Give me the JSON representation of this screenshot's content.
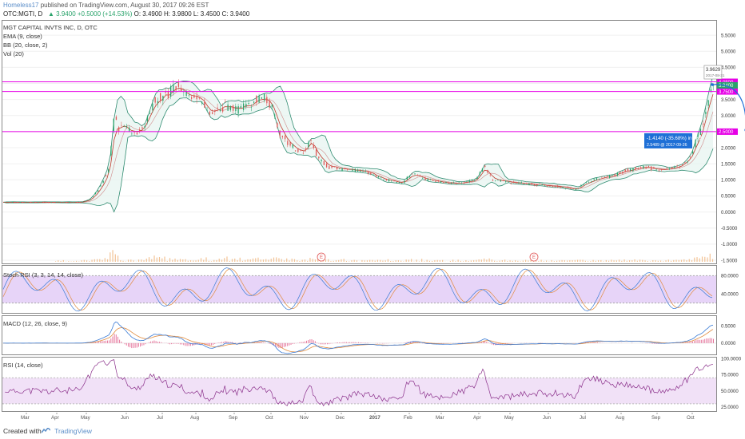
{
  "header": {
    "author": "Homeless17",
    "published": "published on TradingView.com, August 30, 2017 09:26 EST",
    "symbol": "OTC:MGTI, D",
    "last": "3.9400",
    "change": "+0.5000 (+14.53%)",
    "ohlc": "O: 3.4900  H: 3.9800  L: 3.4500  C: 3.9400"
  },
  "studies": {
    "title": "MGT CAPITAL INVTS INC, D, OTC",
    "ema": "EMA (9, close)",
    "bb": "BB (20, close, 2)",
    "vol": "Vol (20)",
    "stoch": "Stoch RSI (3, 3, 14, 14, close)",
    "macd": "MACD (12, 26, close, 9)",
    "rsi": "RSI (14, close)"
  },
  "footer": {
    "created": "Created with",
    "brand": "TradingView"
  },
  "colors": {
    "up": "#2aa36b",
    "down": "#e05555",
    "ema": "#c0392b",
    "bb": "#2e8b70",
    "bbfill": "#e5f4ef",
    "hline": "#e600e6",
    "forecast": "#1e6fd6",
    "stoch_k": "#3a7bd5",
    "stoch_d": "#e08a3c",
    "stoch_fill": "#e3cdf7",
    "macd_line": "#3a7bd5",
    "macd_signal": "#e08a3c",
    "macd_hist": "#e05585",
    "rsi_line": "#8a2f8a",
    "rsi_fill": "#f1e1f7",
    "volume": "#f0b47a"
  },
  "chart_data": [
    {
      "type": "candlestick",
      "title": "MGT CAPITAL INVTS INC, D, OTC",
      "x_ticks": [
        "Mar",
        "Apr",
        "May",
        "Jun",
        "Jul",
        "Aug",
        "Sep",
        "Oct",
        "Nov",
        "Dec",
        "2017",
        "Feb",
        "Mar",
        "Apr",
        "May",
        "Jun",
        "Jul",
        "Aug",
        "Sep",
        "Oct"
      ],
      "y_ticks": [
        "5.5000",
        "5.0000",
        "4.5000",
        "4.0000",
        "3.5000",
        "3.0000",
        "2.5000",
        "2.0000",
        "1.5000",
        "1.0000",
        "0.5000",
        "0.0000",
        "-0.5000",
        "-1.0000",
        "-1.5000"
      ],
      "ylim": [
        -1.55,
        5.85
      ],
      "horizontal_lines": [
        {
          "value": 4.05,
          "label": "4.0500"
        },
        {
          "value": 3.75,
          "label": "3.7500"
        },
        {
          "value": 2.5,
          "label": "2.5000"
        }
      ],
      "last_price_label": "3.9400",
      "price_anchors": [
        {
          "x": 0,
          "y": 0.3
        },
        {
          "x": 90,
          "y": 0.3
        },
        {
          "x": 100,
          "y": 0.4
        },
        {
          "x": 112,
          "y": 0.8
        },
        {
          "x": 122,
          "y": 1.4
        },
        {
          "x": 128,
          "y": 3.2
        },
        {
          "x": 133,
          "y": 2.6
        },
        {
          "x": 140,
          "y": 2.7
        },
        {
          "x": 150,
          "y": 2.4
        },
        {
          "x": 160,
          "y": 2.6
        },
        {
          "x": 175,
          "y": 3.5
        },
        {
          "x": 185,
          "y": 3.6
        },
        {
          "x": 195,
          "y": 3.8
        },
        {
          "x": 205,
          "y": 3.9
        },
        {
          "x": 215,
          "y": 3.6
        },
        {
          "x": 230,
          "y": 3.5
        },
        {
          "x": 240,
          "y": 3.0
        },
        {
          "x": 255,
          "y": 3.3
        },
        {
          "x": 270,
          "y": 3.2
        },
        {
          "x": 285,
          "y": 3.4
        },
        {
          "x": 300,
          "y": 3.6
        },
        {
          "x": 310,
          "y": 3.3
        },
        {
          "x": 318,
          "y": 2.5
        },
        {
          "x": 330,
          "y": 2.1
        },
        {
          "x": 345,
          "y": 1.8
        },
        {
          "x": 355,
          "y": 2.3
        },
        {
          "x": 362,
          "y": 1.7
        },
        {
          "x": 375,
          "y": 1.4
        },
        {
          "x": 395,
          "y": 1.3
        },
        {
          "x": 410,
          "y": 1.3
        },
        {
          "x": 425,
          "y": 1.2
        },
        {
          "x": 440,
          "y": 1.0
        },
        {
          "x": 460,
          "y": 0.9
        },
        {
          "x": 472,
          "y": 1.2
        },
        {
          "x": 490,
          "y": 1.0
        },
        {
          "x": 510,
          "y": 0.9
        },
        {
          "x": 530,
          "y": 0.9
        },
        {
          "x": 545,
          "y": 1.0
        },
        {
          "x": 555,
          "y": 1.4
        },
        {
          "x": 565,
          "y": 1.0
        },
        {
          "x": 590,
          "y": 0.9
        },
        {
          "x": 620,
          "y": 0.85
        },
        {
          "x": 640,
          "y": 0.8
        },
        {
          "x": 660,
          "y": 0.7
        },
        {
          "x": 680,
          "y": 1.0
        },
        {
          "x": 700,
          "y": 1.1
        },
        {
          "x": 720,
          "y": 1.3
        },
        {
          "x": 740,
          "y": 1.4
        },
        {
          "x": 760,
          "y": 1.3
        },
        {
          "x": 780,
          "y": 1.4
        },
        {
          "x": 790,
          "y": 1.6
        },
        {
          "x": 800,
          "y": 2.2
        },
        {
          "x": 808,
          "y": 2.8
        },
        {
          "x": 815,
          "y": 3.7
        },
        {
          "x": 819,
          "y": 3.94
        }
      ],
      "forecast": {
        "from": {
          "value": 3.9629,
          "label": "3.9629",
          "date": "2017-08-31"
        },
        "to": {
          "value": 2.5489,
          "label": "2.5489",
          "date": "2017-09-26"
        },
        "change": "-1.4140 (-35.68%) in 26d"
      },
      "earnings_markers": [
        "E",
        "E"
      ]
    },
    {
      "type": "line",
      "title": "Stoch RSI (3, 3, 14, 14, close)",
      "ylim": [
        0,
        100
      ],
      "band": [
        20,
        80
      ],
      "y_ticks": [
        "80.0000",
        "40.0000"
      ]
    },
    {
      "type": "line",
      "title": "MACD (12, 26, close, 9)",
      "y_ticks": [
        "0.5000",
        "0.0000"
      ]
    },
    {
      "type": "line",
      "title": "RSI (14, close)",
      "ylim": [
        20,
        100
      ],
      "band": [
        30,
        70
      ],
      "y_ticks": [
        "100.0000",
        "75.0000",
        "50.0000",
        "25.0000"
      ]
    }
  ]
}
